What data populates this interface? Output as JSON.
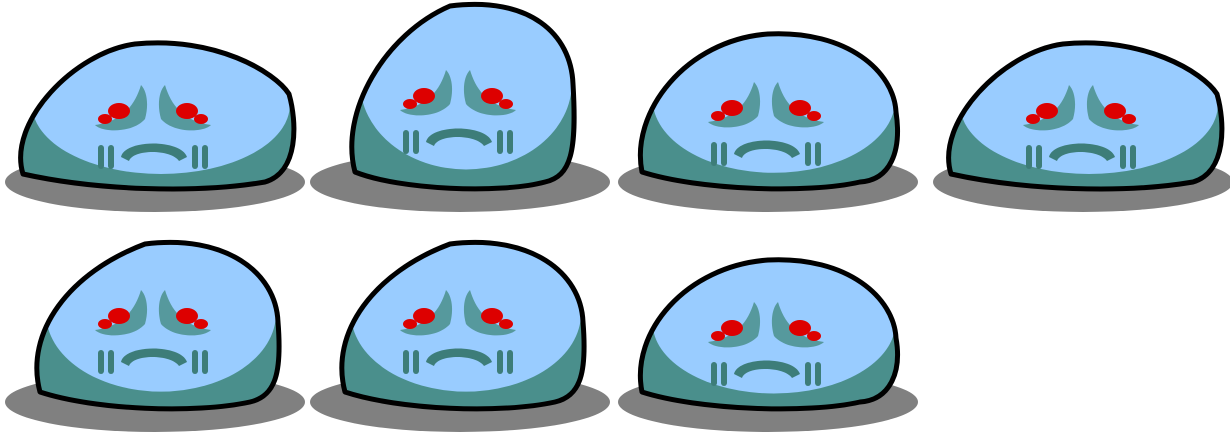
{
  "sprite_sheet": {
    "name": "sad-blue-slime-idle",
    "frame_count": 7,
    "colors": {
      "background": "#ffffff",
      "shadow": "#808080",
      "body_light": "#99ccff",
      "body_dark": "#4a8f8c",
      "outline": "#000000",
      "eye": "#dd0000",
      "eye_highlight": "#ff3333",
      "mouth": "#3d7d79"
    },
    "frames": [
      {
        "id": "frame-1",
        "squash": "wide"
      },
      {
        "id": "frame-2",
        "squash": "tall"
      },
      {
        "id": "frame-3",
        "squash": "medium"
      },
      {
        "id": "frame-4",
        "squash": "wide"
      },
      {
        "id": "frame-5",
        "squash": "tall"
      },
      {
        "id": "frame-6",
        "squash": "tall"
      },
      {
        "id": "frame-7",
        "squash": "medium"
      }
    ]
  }
}
